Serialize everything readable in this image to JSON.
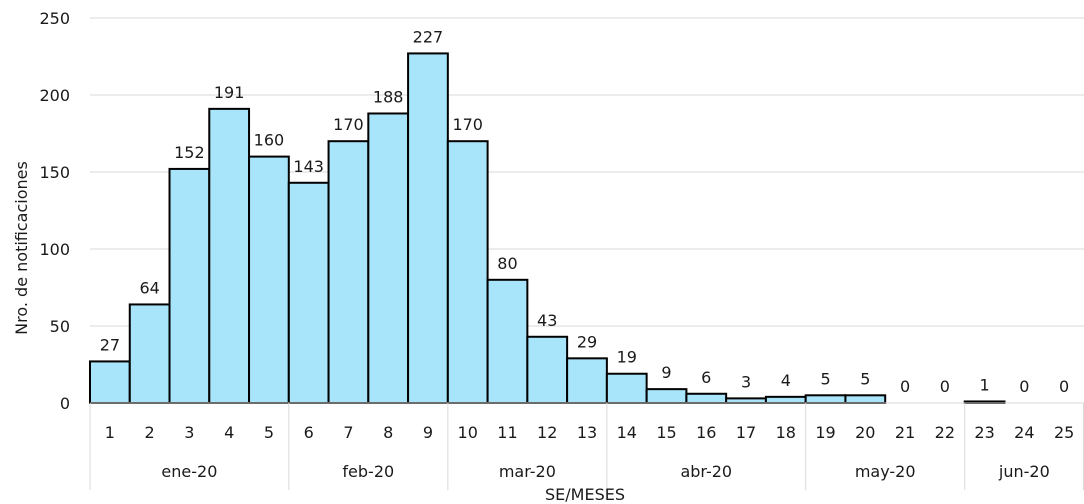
{
  "chart_data": {
    "type": "bar",
    "ylabel": "Nro. de notificaciones",
    "xlabel": "SE/MESES",
    "ylim": [
      0,
      250
    ],
    "yticks": [
      0,
      50,
      100,
      150,
      200,
      250
    ],
    "grid": true,
    "categories": [
      "1",
      "2",
      "3",
      "4",
      "5",
      "6",
      "7",
      "8",
      "9",
      "10",
      "11",
      "12",
      "13",
      "14",
      "15",
      "16",
      "17",
      "18",
      "19",
      "20",
      "21",
      "22",
      "23",
      "24",
      "25"
    ],
    "values": [
      27,
      64,
      152,
      191,
      160,
      143,
      170,
      188,
      227,
      170,
      80,
      43,
      29,
      19,
      9,
      6,
      3,
      4,
      5,
      5,
      0,
      0,
      1,
      0,
      0
    ],
    "month_groups": [
      {
        "label": "ene-20",
        "start": 0,
        "end": 4
      },
      {
        "label": "feb-20",
        "start": 5,
        "end": 8
      },
      {
        "label": "mar-20",
        "start": 9,
        "end": 12
      },
      {
        "label": "abr-20",
        "start": 13,
        "end": 17
      },
      {
        "label": "may-20",
        "start": 18,
        "end": 21
      },
      {
        "label": "jun-20",
        "start": 22,
        "end": 24
      }
    ],
    "bar_color": "#a8e4fa",
    "bar_stroke": "#000000",
    "grid_color": "#d9d9d9"
  }
}
